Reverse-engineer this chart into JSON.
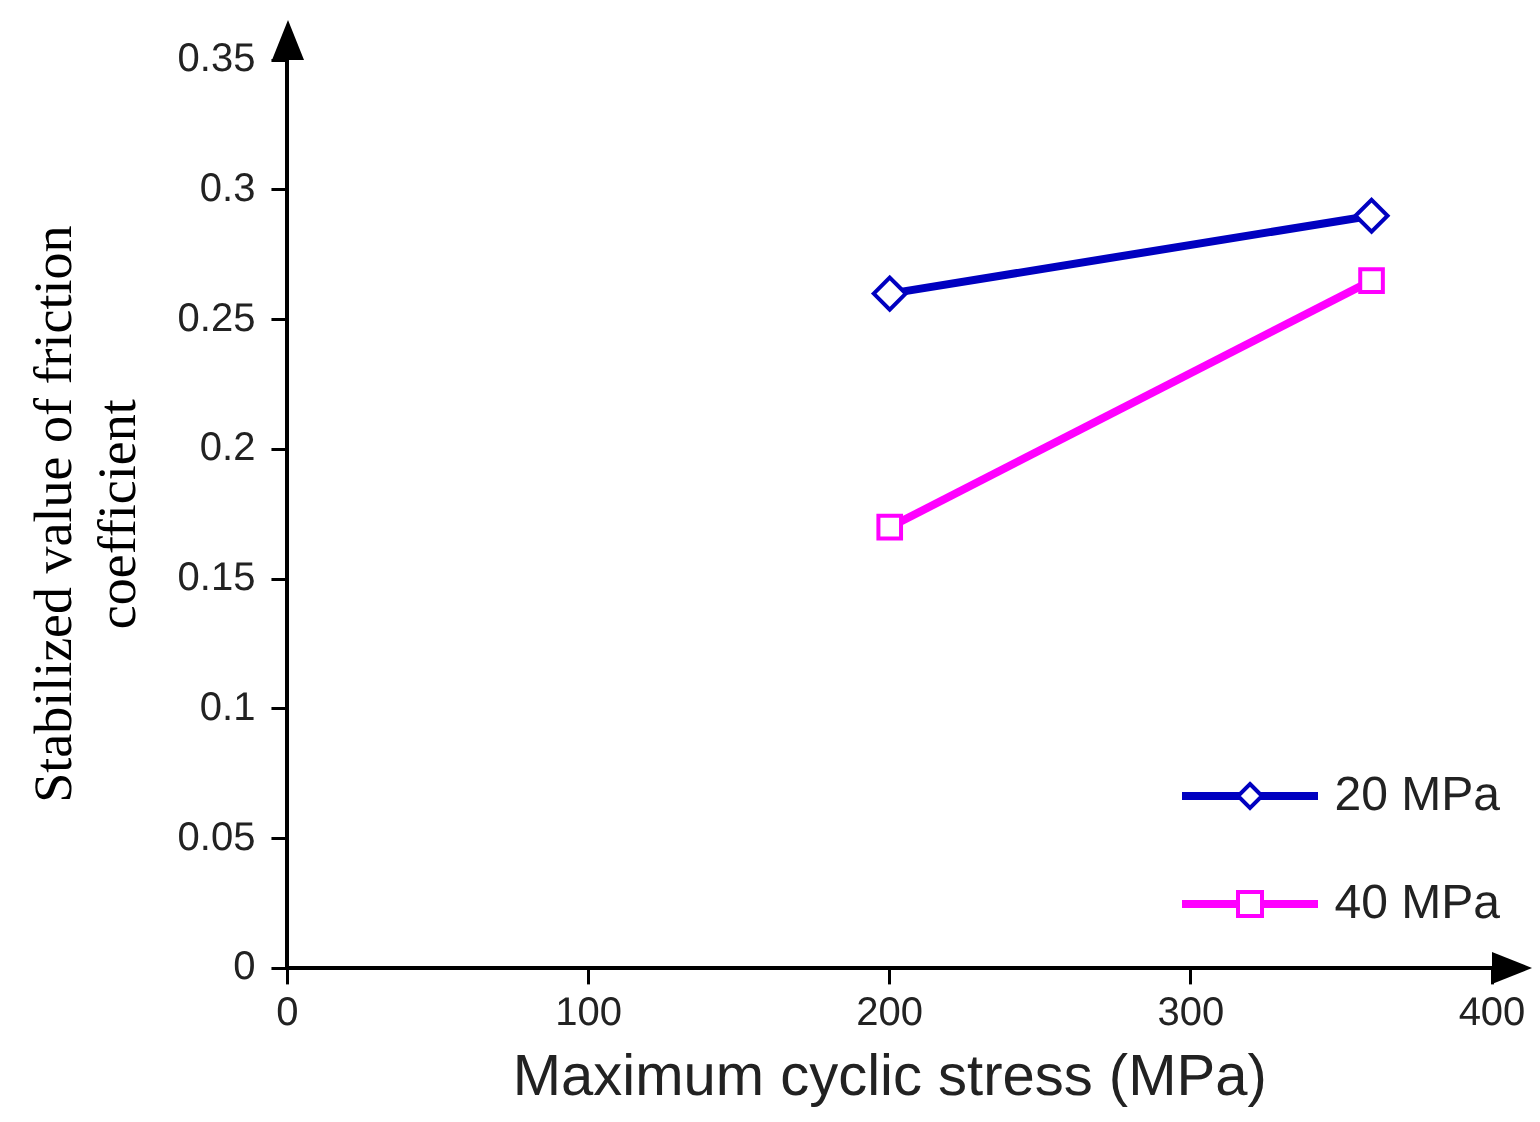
{
  "chart_data": {
    "type": "line",
    "xlabel": "Maximum cyclic stress (MPa)",
    "ylabel": "Stabilized value of friction coefficient",
    "xlim": [
      0,
      400
    ],
    "xticks": [
      0,
      100,
      200,
      300,
      400
    ],
    "ylim": [
      0,
      0.35
    ],
    "yticks": [
      0,
      0.05,
      0.1,
      0.15,
      0.2,
      0.25,
      0.3,
      0.35
    ],
    "grid": false,
    "legend": "bottom right",
    "line_style": "solid",
    "x": [
      200,
      360
    ],
    "series": [
      {
        "name": "20 MPa",
        "color": "#0000c0",
        "marker": "diamond",
        "values": [
          0.26,
          0.29
        ]
      },
      {
        "name": "40 MPa",
        "color": "#ff00ff",
        "marker": "square",
        "values": [
          0.17,
          0.265
        ]
      }
    ]
  }
}
